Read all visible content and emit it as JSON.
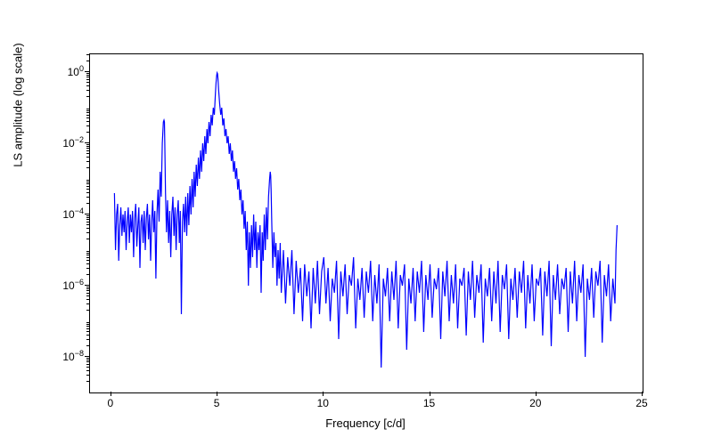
{
  "chart": {
    "type": "line",
    "xlabel": "Frequency [c/d]",
    "ylabel": "LS amplitude (log scale)",
    "label_fontsize": 13,
    "tick_fontsize": 12,
    "xlim": [
      -1,
      25
    ],
    "ylim_log10": [
      -9,
      0.5
    ],
    "yscale": "log",
    "xticks": [
      0,
      5,
      10,
      15,
      20,
      25
    ],
    "yticks_exp": [
      -8,
      -6,
      -4,
      -2,
      0
    ],
    "line_color": "#0000ff",
    "line_width": 1.2,
    "background_color": "#ffffff",
    "border_color": "#000000",
    "data": [
      {
        "x": 0.15,
        "y": -3.4
      },
      {
        "x": 0.2,
        "y": -5.0
      },
      {
        "x": 0.25,
        "y": -4.0
      },
      {
        "x": 0.3,
        "y": -3.7
      },
      {
        "x": 0.35,
        "y": -5.3
      },
      {
        "x": 0.4,
        "y": -4.3
      },
      {
        "x": 0.45,
        "y": -3.8
      },
      {
        "x": 0.5,
        "y": -4.6
      },
      {
        "x": 0.55,
        "y": -4.0
      },
      {
        "x": 0.6,
        "y": -4.5
      },
      {
        "x": 0.65,
        "y": -3.9
      },
      {
        "x": 0.7,
        "y": -5.0
      },
      {
        "x": 0.75,
        "y": -4.2
      },
      {
        "x": 0.8,
        "y": -3.8
      },
      {
        "x": 0.85,
        "y": -4.8
      },
      {
        "x": 0.9,
        "y": -4.0
      },
      {
        "x": 0.95,
        "y": -4.5
      },
      {
        "x": 1.0,
        "y": -3.9
      },
      {
        "x": 1.05,
        "y": -5.2
      },
      {
        "x": 1.1,
        "y": -4.1
      },
      {
        "x": 1.15,
        "y": -3.7
      },
      {
        "x": 1.2,
        "y": -4.9
      },
      {
        "x": 1.25,
        "y": -4.3
      },
      {
        "x": 1.3,
        "y": -3.8
      },
      {
        "x": 1.35,
        "y": -5.5
      },
      {
        "x": 1.4,
        "y": -4.2
      },
      {
        "x": 1.45,
        "y": -4.0
      },
      {
        "x": 1.5,
        "y": -4.8
      },
      {
        "x": 1.55,
        "y": -3.9
      },
      {
        "x": 1.6,
        "y": -5.0
      },
      {
        "x": 1.65,
        "y": -4.1
      },
      {
        "x": 1.7,
        "y": -3.7
      },
      {
        "x": 1.75,
        "y": -4.7
      },
      {
        "x": 1.8,
        "y": -4.0
      },
      {
        "x": 1.85,
        "y": -5.3
      },
      {
        "x": 1.9,
        "y": -4.2
      },
      {
        "x": 1.95,
        "y": -3.6
      },
      {
        "x": 2.0,
        "y": -4.5
      },
      {
        "x": 2.05,
        "y": -3.9
      },
      {
        "x": 2.1,
        "y": -5.8
      },
      {
        "x": 2.15,
        "y": -4.0
      },
      {
        "x": 2.2,
        "y": -3.3
      },
      {
        "x": 2.25,
        "y": -4.2
      },
      {
        "x": 2.3,
        "y": -2.8
      },
      {
        "x": 2.35,
        "y": -3.5
      },
      {
        "x": 2.4,
        "y": -2.0
      },
      {
        "x": 2.45,
        "y": -1.4
      },
      {
        "x": 2.48,
        "y": -1.35
      },
      {
        "x": 2.5,
        "y": -1.4
      },
      {
        "x": 2.52,
        "y": -2.0
      },
      {
        "x": 2.55,
        "y": -3.4
      },
      {
        "x": 2.6,
        "y": -4.5
      },
      {
        "x": 2.65,
        "y": -3.6
      },
      {
        "x": 2.7,
        "y": -4.8
      },
      {
        "x": 2.75,
        "y": -3.9
      },
      {
        "x": 2.8,
        "y": -5.2
      },
      {
        "x": 2.85,
        "y": -4.0
      },
      {
        "x": 2.9,
        "y": -3.5
      },
      {
        "x": 2.95,
        "y": -4.6
      },
      {
        "x": 3.0,
        "y": -3.8
      },
      {
        "x": 3.05,
        "y": -5.0
      },
      {
        "x": 3.1,
        "y": -4.0
      },
      {
        "x": 3.15,
        "y": -3.6
      },
      {
        "x": 3.2,
        "y": -4.8
      },
      {
        "x": 3.25,
        "y": -3.9
      },
      {
        "x": 3.3,
        "y": -6.8
      },
      {
        "x": 3.35,
        "y": -4.2
      },
      {
        "x": 3.4,
        "y": -3.7
      },
      {
        "x": 3.45,
        "y": -4.5
      },
      {
        "x": 3.5,
        "y": -3.5
      },
      {
        "x": 3.55,
        "y": -4.6
      },
      {
        "x": 3.6,
        "y": -3.4
      },
      {
        "x": 3.65,
        "y": -4.3
      },
      {
        "x": 3.7,
        "y": -3.2
      },
      {
        "x": 3.75,
        "y": -4.0
      },
      {
        "x": 3.8,
        "y": -3.0
      },
      {
        "x": 3.85,
        "y": -3.8
      },
      {
        "x": 3.9,
        "y": -2.8
      },
      {
        "x": 3.95,
        "y": -3.5
      },
      {
        "x": 4.0,
        "y": -2.6
      },
      {
        "x": 4.05,
        "y": -3.2
      },
      {
        "x": 4.1,
        "y": -2.4
      },
      {
        "x": 4.15,
        "y": -3.0
      },
      {
        "x": 4.2,
        "y": -2.2
      },
      {
        "x": 4.25,
        "y": -2.8
      },
      {
        "x": 4.3,
        "y": -2.0
      },
      {
        "x": 4.35,
        "y": -2.5
      },
      {
        "x": 4.4,
        "y": -1.8
      },
      {
        "x": 4.45,
        "y": -2.3
      },
      {
        "x": 4.5,
        "y": -1.6
      },
      {
        "x": 4.55,
        "y": -2.0
      },
      {
        "x": 4.6,
        "y": -1.4
      },
      {
        "x": 4.65,
        "y": -1.8
      },
      {
        "x": 4.7,
        "y": -1.2
      },
      {
        "x": 4.75,
        "y": -1.5
      },
      {
        "x": 4.8,
        "y": -1.0
      },
      {
        "x": 4.85,
        "y": -1.2
      },
      {
        "x": 4.9,
        "y": -0.6
      },
      {
        "x": 4.93,
        "y": -0.3
      },
      {
        "x": 4.96,
        "y": -0.1
      },
      {
        "x": 4.98,
        "y": -0.02
      },
      {
        "x": 5.0,
        "y": -0.05
      },
      {
        "x": 5.02,
        "y": -0.2
      },
      {
        "x": 5.05,
        "y": -0.5
      },
      {
        "x": 5.1,
        "y": -0.9
      },
      {
        "x": 5.15,
        "y": -1.2
      },
      {
        "x": 5.2,
        "y": -1.0
      },
      {
        "x": 5.25,
        "y": -1.5
      },
      {
        "x": 5.3,
        "y": -1.3
      },
      {
        "x": 5.35,
        "y": -1.8
      },
      {
        "x": 5.4,
        "y": -1.6
      },
      {
        "x": 5.45,
        "y": -2.0
      },
      {
        "x": 5.5,
        "y": -1.8
      },
      {
        "x": 5.55,
        "y": -2.3
      },
      {
        "x": 5.6,
        "y": -2.0
      },
      {
        "x": 5.65,
        "y": -2.5
      },
      {
        "x": 5.7,
        "y": -2.2
      },
      {
        "x": 5.75,
        "y": -2.8
      },
      {
        "x": 5.8,
        "y": -2.5
      },
      {
        "x": 5.85,
        "y": -3.0
      },
      {
        "x": 5.9,
        "y": -2.7
      },
      {
        "x": 5.95,
        "y": -3.3
      },
      {
        "x": 6.0,
        "y": -3.0
      },
      {
        "x": 6.05,
        "y": -3.6
      },
      {
        "x": 6.1,
        "y": -3.3
      },
      {
        "x": 6.15,
        "y": -4.0
      },
      {
        "x": 6.2,
        "y": -3.6
      },
      {
        "x": 6.25,
        "y": -4.4
      },
      {
        "x": 6.3,
        "y": -3.9
      },
      {
        "x": 6.35,
        "y": -5.0
      },
      {
        "x": 6.4,
        "y": -4.2
      },
      {
        "x": 6.45,
        "y": -6.0
      },
      {
        "x": 6.5,
        "y": -4.5
      },
      {
        "x": 6.55,
        "y": -5.5
      },
      {
        "x": 6.6,
        "y": -4.3
      },
      {
        "x": 6.65,
        "y": -5.2
      },
      {
        "x": 6.7,
        "y": -4.0
      },
      {
        "x": 6.75,
        "y": -5.0
      },
      {
        "x": 6.8,
        "y": -4.2
      },
      {
        "x": 6.85,
        "y": -5.5
      },
      {
        "x": 6.9,
        "y": -4.5
      },
      {
        "x": 6.95,
        "y": -5.0
      },
      {
        "x": 7.0,
        "y": -4.3
      },
      {
        "x": 7.05,
        "y": -6.2
      },
      {
        "x": 7.1,
        "y": -4.5
      },
      {
        "x": 7.15,
        "y": -5.3
      },
      {
        "x": 7.2,
        "y": -4.0
      },
      {
        "x": 7.25,
        "y": -5.0
      },
      {
        "x": 7.3,
        "y": -3.8
      },
      {
        "x": 7.35,
        "y": -4.7
      },
      {
        "x": 7.4,
        "y": -3.5
      },
      {
        "x": 7.45,
        "y": -3.0
      },
      {
        "x": 7.48,
        "y": -2.8
      },
      {
        "x": 7.5,
        "y": -2.9
      },
      {
        "x": 7.52,
        "y": -3.3
      },
      {
        "x": 7.55,
        "y": -4.2
      },
      {
        "x": 7.6,
        "y": -5.5
      },
      {
        "x": 7.65,
        "y": -4.5
      },
      {
        "x": 7.7,
        "y": -5.2
      },
      {
        "x": 7.75,
        "y": -4.8
      },
      {
        "x": 7.8,
        "y": -6.0
      },
      {
        "x": 7.85,
        "y": -5.0
      },
      {
        "x": 7.9,
        "y": -5.8
      },
      {
        "x": 7.95,
        "y": -4.8
      },
      {
        "x": 8.0,
        "y": -6.2
      },
      {
        "x": 8.1,
        "y": -5.0
      },
      {
        "x": 8.2,
        "y": -6.5
      },
      {
        "x": 8.3,
        "y": -5.2
      },
      {
        "x": 8.4,
        "y": -6.0
      },
      {
        "x": 8.5,
        "y": -5.0
      },
      {
        "x": 8.6,
        "y": -6.8
      },
      {
        "x": 8.7,
        "y": -5.3
      },
      {
        "x": 8.8,
        "y": -6.2
      },
      {
        "x": 8.9,
        "y": -5.5
      },
      {
        "x": 9.0,
        "y": -7.0
      },
      {
        "x": 9.1,
        "y": -5.4
      },
      {
        "x": 9.2,
        "y": -6.3
      },
      {
        "x": 9.3,
        "y": -5.6
      },
      {
        "x": 9.4,
        "y": -7.2
      },
      {
        "x": 9.5,
        "y": -5.5
      },
      {
        "x": 9.6,
        "y": -6.5
      },
      {
        "x": 9.7,
        "y": -5.3
      },
      {
        "x": 9.8,
        "y": -6.8
      },
      {
        "x": 9.9,
        "y": -5.6
      },
      {
        "x": 10.0,
        "y": -5.2
      },
      {
        "x": 10.1,
        "y": -6.5
      },
      {
        "x": 10.2,
        "y": -5.5
      },
      {
        "x": 10.3,
        "y": -7.0
      },
      {
        "x": 10.4,
        "y": -5.8
      },
      {
        "x": 10.5,
        "y": -6.2
      },
      {
        "x": 10.6,
        "y": -5.3
      },
      {
        "x": 10.7,
        "y": -7.5
      },
      {
        "x": 10.8,
        "y": -5.6
      },
      {
        "x": 10.9,
        "y": -6.3
      },
      {
        "x": 11.0,
        "y": -5.4
      },
      {
        "x": 11.1,
        "y": -6.8
      },
      {
        "x": 11.2,
        "y": -5.7
      },
      {
        "x": 11.3,
        "y": -6.0
      },
      {
        "x": 11.4,
        "y": -5.2
      },
      {
        "x": 11.5,
        "y": -7.2
      },
      {
        "x": 11.6,
        "y": -5.8
      },
      {
        "x": 11.7,
        "y": -6.4
      },
      {
        "x": 11.8,
        "y": -5.5
      },
      {
        "x": 11.9,
        "y": -6.9
      },
      {
        "x": 12.0,
        "y": -5.6
      },
      {
        "x": 12.1,
        "y": -6.2
      },
      {
        "x": 12.2,
        "y": -5.3
      },
      {
        "x": 12.3,
        "y": -7.0
      },
      {
        "x": 12.4,
        "y": -5.7
      },
      {
        "x": 12.5,
        "y": -6.5
      },
      {
        "x": 12.6,
        "y": -5.4
      },
      {
        "x": 12.7,
        "y": -8.3
      },
      {
        "x": 12.8,
        "y": -5.8
      },
      {
        "x": 12.9,
        "y": -6.3
      },
      {
        "x": 13.0,
        "y": -5.5
      },
      {
        "x": 13.1,
        "y": -7.0
      },
      {
        "x": 13.2,
        "y": -5.6
      },
      {
        "x": 13.3,
        "y": -6.4
      },
      {
        "x": 13.4,
        "y": -5.3
      },
      {
        "x": 13.5,
        "y": -7.2
      },
      {
        "x": 13.6,
        "y": -5.7
      },
      {
        "x": 13.7,
        "y": -6.0
      },
      {
        "x": 13.8,
        "y": -5.4
      },
      {
        "x": 13.9,
        "y": -7.8
      },
      {
        "x": 14.0,
        "y": -5.8
      },
      {
        "x": 14.1,
        "y": -6.5
      },
      {
        "x": 14.2,
        "y": -5.5
      },
      {
        "x": 14.3,
        "y": -7.0
      },
      {
        "x": 14.4,
        "y": -5.6
      },
      {
        "x": 14.5,
        "y": -6.2
      },
      {
        "x": 14.6,
        "y": -5.3
      },
      {
        "x": 14.7,
        "y": -7.3
      },
      {
        "x": 14.8,
        "y": -5.7
      },
      {
        "x": 14.9,
        "y": -6.4
      },
      {
        "x": 15.0,
        "y": -5.4
      },
      {
        "x": 15.1,
        "y": -6.9
      },
      {
        "x": 15.2,
        "y": -5.8
      },
      {
        "x": 15.3,
        "y": -6.1
      },
      {
        "x": 15.4,
        "y": -5.5
      },
      {
        "x": 15.5,
        "y": -7.5
      },
      {
        "x": 15.6,
        "y": -5.6
      },
      {
        "x": 15.7,
        "y": -6.3
      },
      {
        "x": 15.8,
        "y": -5.3
      },
      {
        "x": 15.9,
        "y": -7.0
      },
      {
        "x": 16.0,
        "y": -5.7
      },
      {
        "x": 16.1,
        "y": -6.5
      },
      {
        "x": 16.2,
        "y": -5.4
      },
      {
        "x": 16.3,
        "y": -7.2
      },
      {
        "x": 16.4,
        "y": -5.8
      },
      {
        "x": 16.5,
        "y": -6.0
      },
      {
        "x": 16.6,
        "y": -5.5
      },
      {
        "x": 16.7,
        "y": -7.4
      },
      {
        "x": 16.8,
        "y": -5.6
      },
      {
        "x": 16.9,
        "y": -6.4
      },
      {
        "x": 17.0,
        "y": -5.3
      },
      {
        "x": 17.1,
        "y": -6.9
      },
      {
        "x": 17.2,
        "y": -5.7
      },
      {
        "x": 17.3,
        "y": -6.2
      },
      {
        "x": 17.4,
        "y": -5.4
      },
      {
        "x": 17.5,
        "y": -7.6
      },
      {
        "x": 17.6,
        "y": -5.8
      },
      {
        "x": 17.7,
        "y": -6.3
      },
      {
        "x": 17.8,
        "y": -5.5
      },
      {
        "x": 17.9,
        "y": -7.0
      },
      {
        "x": 18.0,
        "y": -5.6
      },
      {
        "x": 18.1,
        "y": -6.5
      },
      {
        "x": 18.2,
        "y": -5.3
      },
      {
        "x": 18.3,
        "y": -7.3
      },
      {
        "x": 18.4,
        "y": -5.7
      },
      {
        "x": 18.5,
        "y": -6.1
      },
      {
        "x": 18.6,
        "y": -5.4
      },
      {
        "x": 18.7,
        "y": -7.5
      },
      {
        "x": 18.8,
        "y": -5.8
      },
      {
        "x": 18.9,
        "y": -6.4
      },
      {
        "x": 19.0,
        "y": -5.5
      },
      {
        "x": 19.1,
        "y": -6.9
      },
      {
        "x": 19.2,
        "y": -5.6
      },
      {
        "x": 19.3,
        "y": -6.2
      },
      {
        "x": 19.4,
        "y": -5.3
      },
      {
        "x": 19.5,
        "y": -7.2
      },
      {
        "x": 19.6,
        "y": -5.7
      },
      {
        "x": 19.7,
        "y": -6.5
      },
      {
        "x": 19.8,
        "y": -5.4
      },
      {
        "x": 19.9,
        "y": -7.0
      },
      {
        "x": 20.0,
        "y": -5.8
      },
      {
        "x": 20.1,
        "y": -6.0
      },
      {
        "x": 20.2,
        "y": -5.5
      },
      {
        "x": 20.3,
        "y": -7.4
      },
      {
        "x": 20.4,
        "y": -5.6
      },
      {
        "x": 20.5,
        "y": -6.3
      },
      {
        "x": 20.6,
        "y": -5.3
      },
      {
        "x": 20.7,
        "y": -7.7
      },
      {
        "x": 20.8,
        "y": -5.7
      },
      {
        "x": 20.9,
        "y": -6.4
      },
      {
        "x": 21.0,
        "y": -5.4
      },
      {
        "x": 21.1,
        "y": -6.8
      },
      {
        "x": 21.2,
        "y": -5.8
      },
      {
        "x": 21.3,
        "y": -6.1
      },
      {
        "x": 21.4,
        "y": -5.5
      },
      {
        "x": 21.5,
        "y": -7.3
      },
      {
        "x": 21.6,
        "y": -5.6
      },
      {
        "x": 21.7,
        "y": -6.5
      },
      {
        "x": 21.8,
        "y": -5.3
      },
      {
        "x": 21.9,
        "y": -7.0
      },
      {
        "x": 22.0,
        "y": -5.7
      },
      {
        "x": 22.1,
        "y": -6.2
      },
      {
        "x": 22.2,
        "y": -5.4
      },
      {
        "x": 22.3,
        "y": -8.0
      },
      {
        "x": 22.4,
        "y": -5.8
      },
      {
        "x": 22.5,
        "y": -6.4
      },
      {
        "x": 22.6,
        "y": -5.5
      },
      {
        "x": 22.7,
        "y": -6.9
      },
      {
        "x": 22.8,
        "y": -5.6
      },
      {
        "x": 22.9,
        "y": -6.0
      },
      {
        "x": 23.0,
        "y": -5.3
      },
      {
        "x": 23.1,
        "y": -7.6
      },
      {
        "x": 23.2,
        "y": -5.7
      },
      {
        "x": 23.3,
        "y": -6.3
      },
      {
        "x": 23.4,
        "y": -5.4
      },
      {
        "x": 23.5,
        "y": -7.0
      },
      {
        "x": 23.6,
        "y": -5.8
      },
      {
        "x": 23.7,
        "y": -6.5
      },
      {
        "x": 23.75,
        "y": -5.0
      },
      {
        "x": 23.8,
        "y": -4.3
      }
    ]
  }
}
